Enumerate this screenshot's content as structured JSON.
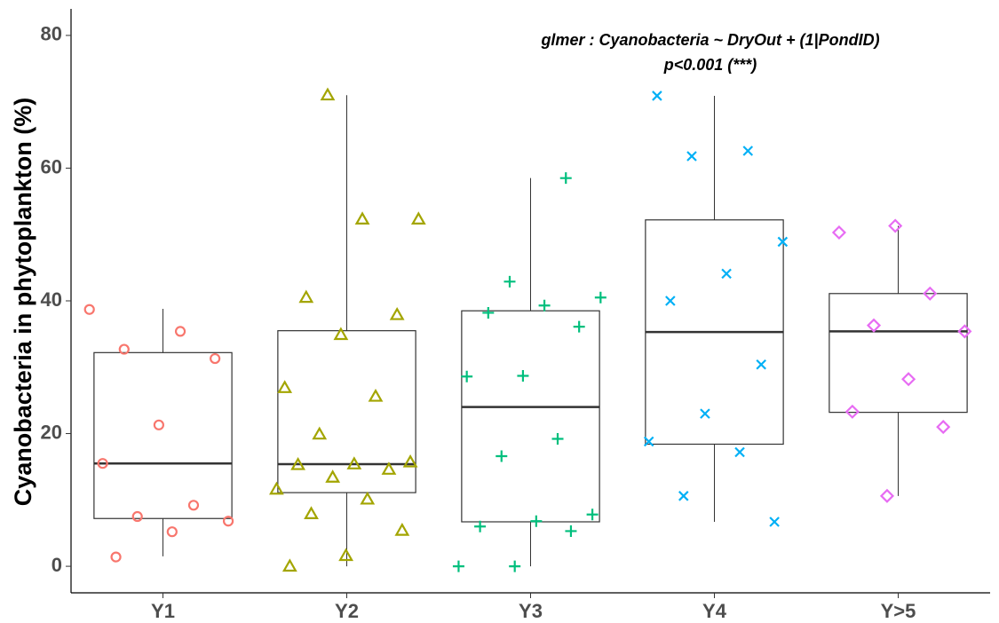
{
  "chart_data": {
    "type": "box",
    "annotation": [
      "glmer : Cyanobacteria ~ DryOut + (1|PondID)",
      "p<0.001 (***)"
    ],
    "ylabel": "Cyanobacteria in phytoplankton (%)",
    "categories": [
      "Y1",
      "Y2",
      "Y3",
      "Y4",
      "Y>5"
    ],
    "colors": [
      "#F8766D",
      "#A3A500",
      "#00BF7D",
      "#00B0F6",
      "#E76BF3"
    ],
    "shapes": [
      "circle",
      "triangle",
      "plus",
      "cross",
      "diamond"
    ],
    "boxes": [
      {
        "low": 1.5,
        "q1": 7.2,
        "median": 15.5,
        "q3": 32.2,
        "high": 38.8
      },
      {
        "low": 0,
        "q1": 11.1,
        "median": 15.4,
        "q3": 35.5,
        "high": 71
      },
      {
        "low": 0,
        "q1": 6.7,
        "median": 24,
        "q3": 38.5,
        "high": 58.5
      },
      {
        "low": 6.7,
        "q1": 18.4,
        "median": 35.3,
        "q3": 52.2,
        "high": 70.9
      },
      {
        "low": 10.6,
        "q1": 23.2,
        "median": 35.4,
        "q3": 41.1,
        "high": 51.3
      }
    ],
    "points": [
      [
        38.7,
        35.4,
        32.7,
        31.3,
        21.3,
        15.5,
        9.2,
        7.5,
        6.8,
        5.2,
        1.4
      ],
      [
        71,
        52.3,
        52.3,
        40.5,
        37.9,
        34.9,
        26.9,
        25.6,
        19.9,
        15.7,
        15.4,
        15.3,
        14.6,
        13.4,
        11.6,
        10.1,
        7.9,
        5.4,
        1.6,
        0
      ],
      [
        58.5,
        42.9,
        40.5,
        39.3,
        38.2,
        36.1,
        28.7,
        28.6,
        19.2,
        16.6,
        7.8,
        6.8,
        6.0,
        5.3,
        0,
        0
      ],
      [
        70.9,
        62.6,
        61.8,
        48.9,
        44.1,
        40.0,
        30.4,
        23.0,
        18.8,
        17.2,
        10.6,
        6.7
      ],
      [
        51.3,
        50.3,
        41.1,
        36.3,
        35.4,
        28.2,
        23.3,
        21.0,
        10.6
      ]
    ],
    "ylim": [
      -4,
      84
    ],
    "yticks": [
      0,
      20,
      40,
      60,
      80
    ],
    "grid": false
  }
}
